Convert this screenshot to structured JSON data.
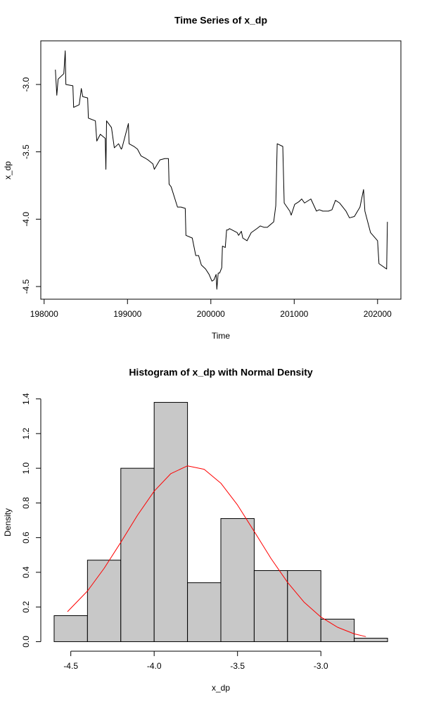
{
  "chart_data": [
    {
      "type": "line",
      "title": "Time Series of x_dp",
      "xlabel": "Time",
      "ylabel": "x_dp",
      "box": true,
      "color": "#000000",
      "xlim": [
        197960,
        202280
      ],
      "xticks": [
        198000,
        199000,
        200000,
        201000,
        202000
      ],
      "ylim": [
        -4.594,
        -2.676
      ],
      "yticks": [
        -4.5,
        {
          "value": -4,
          "label": "-4.0"
        },
        -3.5,
        {
          "value": -3,
          "label": "-3.0"
        }
      ],
      "x": [
        198135,
        198152,
        198168,
        198236,
        198253,
        198261,
        198345,
        198354,
        198421,
        198446,
        198463,
        198522,
        198531,
        198615,
        198632,
        198674,
        198733,
        198741,
        198749,
        198808,
        198842,
        198893,
        198926,
        198935,
        199011,
        199019,
        199078,
        199120,
        199162,
        199221,
        199246,
        199305,
        199322,
        199389,
        199448,
        199491,
        199499,
        199524,
        199600,
        199642,
        199693,
        199701,
        199777,
        199819,
        199853,
        199886,
        199937,
        199979,
        200013,
        200038,
        200063,
        200072,
        200088,
        200105,
        200131,
        200139,
        200173,
        200189,
        200206,
        200223,
        200316,
        200333,
        200366,
        200383,
        200434,
        200484,
        200552,
        200594,
        200636,
        200678,
        200754,
        200779,
        200796,
        200863,
        200880,
        200947,
        200964,
        201006,
        201057,
        201090,
        201124,
        201200,
        201267,
        201301,
        201343,
        201411,
        201453,
        201495,
        201545,
        201621,
        201663,
        201722,
        201789,
        201832,
        201848,
        201916,
        202000,
        202017,
        202109,
        202118
      ],
      "values": [
        -2.89,
        -3.08,
        -2.96,
        -2.92,
        -2.75,
        -3.0,
        -3.01,
        -3.17,
        -3.15,
        -3.03,
        -3.09,
        -3.1,
        -3.25,
        -3.27,
        -3.42,
        -3.37,
        -3.4,
        -3.63,
        -3.27,
        -3.32,
        -3.47,
        -3.44,
        -3.48,
        -3.47,
        -3.29,
        -3.44,
        -3.46,
        -3.48,
        -3.53,
        -3.55,
        -3.56,
        -3.59,
        -3.63,
        -3.56,
        -3.55,
        -3.55,
        -3.74,
        -3.76,
        -3.91,
        -3.91,
        -3.92,
        -4.12,
        -4.14,
        -4.27,
        -4.27,
        -4.34,
        -4.37,
        -4.41,
        -4.46,
        -4.45,
        -4.41,
        -4.52,
        -4.4,
        -4.4,
        -4.36,
        -4.2,
        -4.21,
        -4.08,
        -4.08,
        -4.07,
        -4.1,
        -4.12,
        -4.09,
        -4.14,
        -4.16,
        -4.1,
        -4.07,
        -4.05,
        -4.06,
        -4.06,
        -4.02,
        -3.9,
        -3.44,
        -3.46,
        -3.88,
        -3.94,
        -3.97,
        -3.89,
        -3.87,
        -3.85,
        -3.88,
        -3.85,
        -3.94,
        -3.93,
        -3.94,
        -3.94,
        -3.93,
        -3.86,
        -3.88,
        -3.94,
        -3.99,
        -3.98,
        -3.91,
        -3.78,
        -3.94,
        -4.1,
        -4.16,
        -4.33,
        -4.37,
        -4.02
      ]
    },
    {
      "type": "histogram",
      "title": "Histogram of x_dp with Normal Density",
      "xlabel": "x_dp",
      "ylabel": "Density",
      "box": false,
      "color": "#c8c8c8",
      "xlim": [
        -4.68,
        -2.52
      ],
      "xticks": [
        -4.5,
        {
          "value": -4,
          "label": "-4.0"
        },
        -3.5,
        {
          "value": -3,
          "label": "-3.0"
        }
      ],
      "ylim": [
        -0.055,
        1.435
      ],
      "yticks": [
        {
          "value": 0,
          "label": "0.0"
        },
        0.2,
        0.4,
        0.6,
        0.8,
        {
          "value": 1,
          "label": "1.0"
        },
        1.2,
        1.4
      ],
      "bins": [
        -4.6,
        -4.4,
        -4.2,
        -4.0,
        -3.8,
        -3.6,
        -3.4,
        -3.2,
        -3.0,
        -2.8,
        -2.6
      ],
      "values": [
        0.15,
        0.47,
        1.0,
        1.38,
        0.34,
        0.71,
        0.41,
        0.41,
        0.13,
        0.02
      ],
      "density_curve": {
        "color": "#ff0000",
        "x": [
          -4.52,
          -4.4,
          -4.3,
          -4.2,
          -4.1,
          -4.0,
          -3.9,
          -3.8,
          -3.7,
          -3.6,
          -3.5,
          -3.4,
          -3.3,
          -3.2,
          -3.1,
          -3.0,
          -2.9,
          -2.8,
          -2.73
        ],
        "values": [
          0.173,
          0.292,
          0.423,
          0.573,
          0.729,
          0.868,
          0.969,
          1.014,
          0.994,
          0.914,
          0.788,
          0.636,
          0.481,
          0.342,
          0.227,
          0.142,
          0.083,
          0.045,
          0.029
        ]
      }
    }
  ]
}
